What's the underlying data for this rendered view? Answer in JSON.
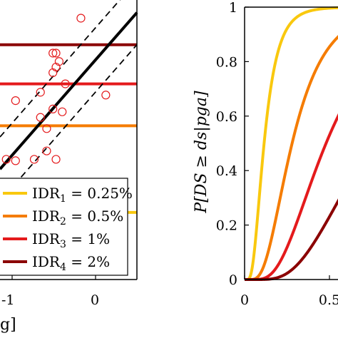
{
  "chart_data": [
    {
      "type": "scatter",
      "x_ticks": [
        "-1",
        "0"
      ],
      "xlabel_fragment": "g]",
      "xlim": [
        -1.85,
        0.35
      ],
      "ylim": [
        0,
        10
      ],
      "points": [
        {
          "x": -0.55,
          "y": 9.35
        },
        {
          "x": -1.0,
          "y": 8.1
        },
        {
          "x": -0.95,
          "y": 8.1
        },
        {
          "x": -0.9,
          "y": 7.8
        },
        {
          "x": -0.95,
          "y": 7.6
        },
        {
          "x": -1.0,
          "y": 7.4
        },
        {
          "x": -0.8,
          "y": 7.0
        },
        {
          "x": -1.2,
          "y": 6.7
        },
        {
          "x": -0.15,
          "y": 6.6
        },
        {
          "x": -1.0,
          "y": 6.1
        },
        {
          "x": -0.85,
          "y": 6.0
        },
        {
          "x": -1.2,
          "y": 5.8
        },
        {
          "x": -1.1,
          "y": 5.4
        },
        {
          "x": -1.6,
          "y": 6.4
        },
        {
          "x": -1.1,
          "y": 4.6
        },
        {
          "x": -0.95,
          "y": 4.3
        },
        {
          "x": -1.3,
          "y": 4.3
        },
        {
          "x": -1.6,
          "y": 4.25
        },
        {
          "x": -1.75,
          "y": 4.3
        },
        {
          "x": -1.0,
          "y": 2.1
        }
      ],
      "regression": {
        "x": [
          -1.85,
          0.35
        ],
        "y": [
          3.95,
          9.55
        ]
      },
      "bounds": [
        {
          "x": [
            -1.85,
            0.35
          ],
          "y": [
            5.1,
            10.7
          ]
        },
        {
          "x": [
            -1.85,
            0.35
          ],
          "y": [
            2.8,
            8.4
          ]
        }
      ],
      "thresholds": [
        {
          "label": "IDR4",
          "y": 8.4,
          "color": "#8b0000"
        },
        {
          "label": "IDR3",
          "y": 7.0,
          "color": "#e41a1c"
        },
        {
          "label": "IDR2",
          "y": 5.5,
          "color": "#f57c00"
        },
        {
          "label": "IDR1",
          "y": 2.4,
          "color": "#f9c80e"
        }
      ],
      "legend": [
        {
          "base": "IDR",
          "sub": "1",
          "value": "= 0.25%",
          "color": "#f9c80e"
        },
        {
          "base": "IDR",
          "sub": "2",
          "value": "= 0.5%",
          "color": "#f57c00"
        },
        {
          "base": "IDR",
          "sub": "3",
          "value": "= 1%",
          "color": "#e41a1c"
        },
        {
          "base": "IDR",
          "sub": "4",
          "value": "= 2%",
          "color": "#8b0000"
        }
      ],
      "legend_placement": "bottom-left"
    },
    {
      "type": "line",
      "ylabel": "P[DS ≥ ds|pga]",
      "xlim": [
        0,
        0.6
      ],
      "ylim": [
        0,
        1
      ],
      "x_ticks": [
        "0",
        "0.5"
      ],
      "y_ticks": [
        "0",
        "0.2",
        "0.4",
        "0.6",
        "0.8",
        "1"
      ],
      "series": [
        {
          "color": "#f9c80e",
          "median": 0.115,
          "beta": 0.55
        },
        {
          "color": "#f57c00",
          "median": 0.28,
          "beta": 0.55
        },
        {
          "color": "#e41a1c",
          "median": 0.48,
          "beta": 0.55
        },
        {
          "color": "#8b0000",
          "median": 0.75,
          "beta": 0.55
        }
      ]
    }
  ]
}
